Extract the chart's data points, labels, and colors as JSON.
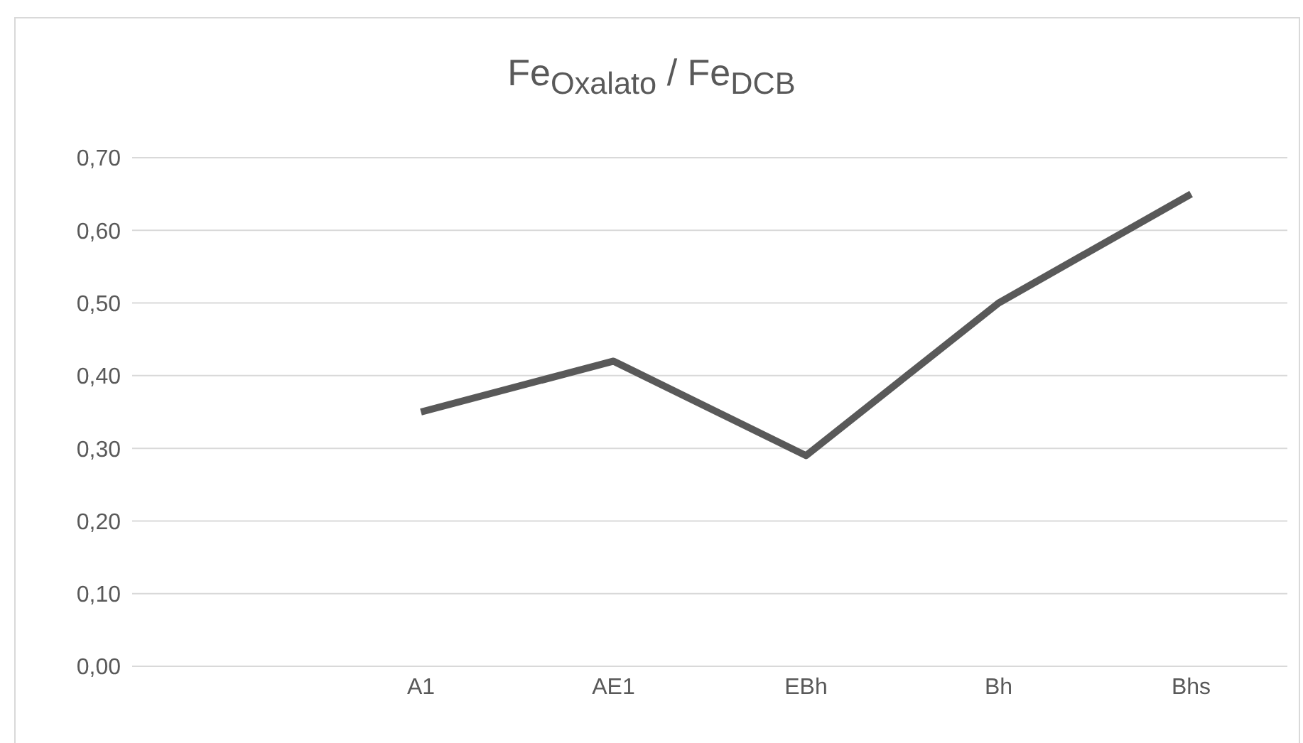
{
  "chart_data": {
    "type": "line",
    "title": "Fe$_{Oxalato}$ / Fe$_{DCB}$",
    "categories": [
      null,
      "A1",
      "AE1",
      "EBh",
      "Bh",
      "Bhs"
    ],
    "series": [
      {
        "color": "#595959",
        "values": [
          null,
          0.35,
          0.42,
          0.29,
          0.5,
          0.65
        ]
      }
    ],
    "ylim": [
      0,
      0.7
    ],
    "yticks": [
      {
        "value": 0,
        "label": "0,00"
      },
      {
        "value": 0.1,
        "label": "0,10"
      },
      {
        "value": 0.2,
        "label": "0,20"
      },
      {
        "value": 0.3,
        "label": "0,30"
      },
      {
        "value": 0.4,
        "label": "0,40"
      },
      {
        "value": 0.5,
        "label": "0,50"
      },
      {
        "value": 0.6,
        "label": "0,60"
      },
      {
        "value": 0.7,
        "label": "0,70"
      }
    ],
    "grid": "y",
    "legend": false,
    "marker": "none",
    "line_style": "solid"
  }
}
